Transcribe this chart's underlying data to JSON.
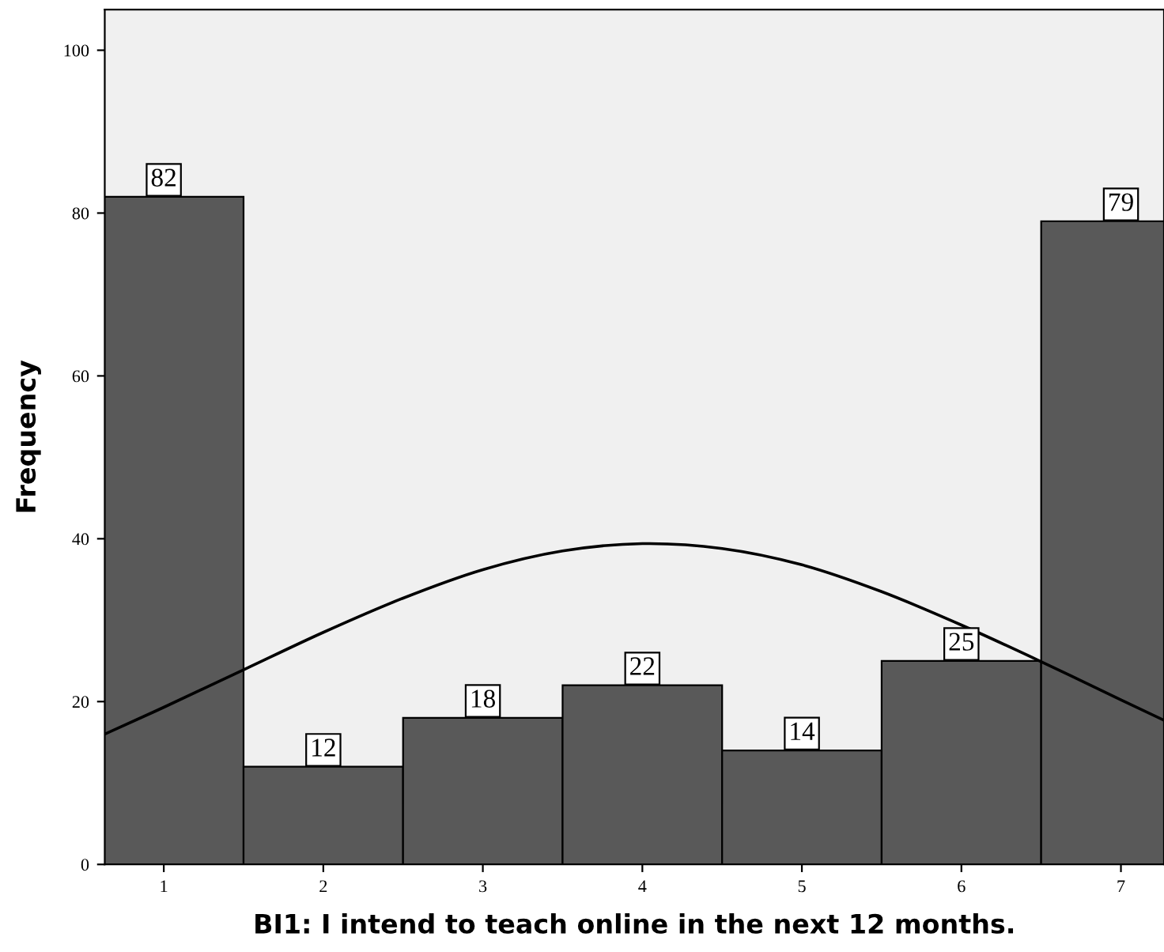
{
  "chart_data": {
    "type": "histogram",
    "xlabel": "BI1: I intend to teach online in the next 12 months.",
    "ylabel": "Frequency",
    "bins": [
      0.5,
      1.5,
      2.5,
      3.5,
      4.5,
      5.5,
      6.5,
      7.5
    ],
    "values": [
      82,
      12,
      18,
      22,
      14,
      25,
      79
    ],
    "color": "#595959",
    "value_labels": [
      "82",
      "12",
      "18",
      "22",
      "14",
      "25",
      "79"
    ],
    "series": [
      {
        "type": "line",
        "color": "#000000",
        "x": [
          0.63,
          1,
          1.5,
          2,
          2.5,
          3,
          3.5,
          4,
          4.5,
          5,
          5.5,
          6,
          6.5,
          7,
          7.27
        ],
        "values": [
          16.0,
          19.3,
          23.9,
          28.5,
          32.7,
          36.2,
          38.5,
          39.4,
          38.8,
          36.8,
          33.5,
          29.4,
          24.9,
          20.2,
          17.7
        ]
      }
    ],
    "xlim": [
      0.63,
      7.27
    ],
    "xticks": [
      1,
      2,
      3,
      4,
      5,
      6,
      7
    ],
    "ylim": [
      0,
      105
    ],
    "yticks": [
      0,
      20,
      40,
      60,
      80,
      100
    ],
    "grid": false
  }
}
